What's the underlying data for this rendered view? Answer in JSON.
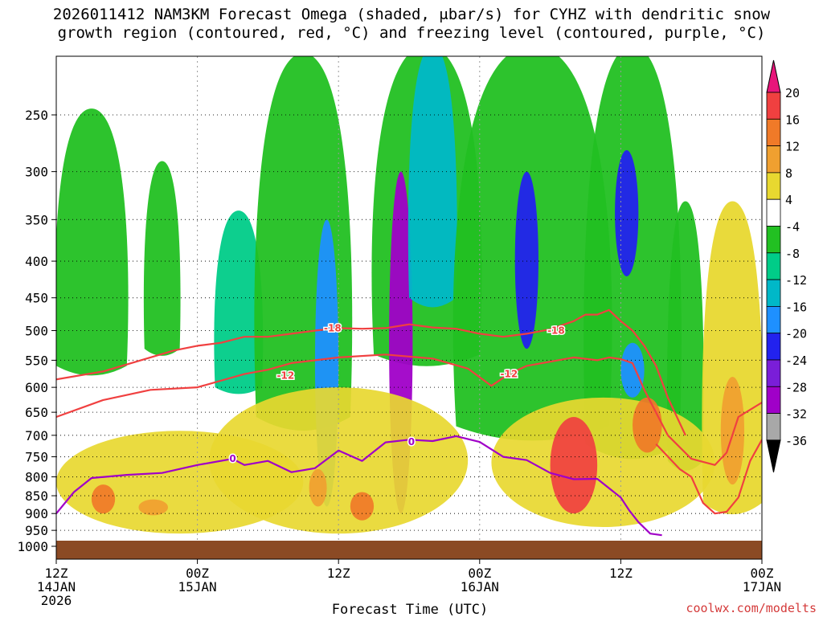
{
  "title": {
    "line1": "2026011412 NAM3KM Forecast Omega (shaded, μbar/s) for CYHZ with dendritic snow",
    "line2": "growth region (contoured, red, °C) and freezing level (contoured, purple, °C)"
  },
  "footer": {
    "xaxis_title": "Forecast Time (UTC)",
    "credit": "coolwx.com/modelts"
  },
  "chart_data": {
    "type": "heatmap",
    "xlabel": "Forecast Time (UTC)",
    "ylabel": "",
    "xlim": [
      0,
      60
    ],
    "ylim_hpa": [
      1000,
      200
    ],
    "y_scale": "log-pressure",
    "grid": true,
    "legend": "colorbar-right",
    "x_ticks": [
      {
        "hour": 0,
        "label": "12Z",
        "sub": [
          "14JAN",
          "2026"
        ]
      },
      {
        "hour": 12,
        "label": "00Z",
        "sub": [
          "15JAN"
        ]
      },
      {
        "hour": 24,
        "label": "12Z",
        "sub": []
      },
      {
        "hour": 36,
        "label": "00Z",
        "sub": [
          "16JAN"
        ]
      },
      {
        "hour": 48,
        "label": "12Z",
        "sub": []
      },
      {
        "hour": 60,
        "label": "00Z",
        "sub": [
          "17JAN"
        ]
      }
    ],
    "y_ticks": [
      250,
      300,
      350,
      400,
      450,
      500,
      550,
      600,
      650,
      700,
      750,
      800,
      850,
      900,
      950,
      1000
    ],
    "colorbar": {
      "levels": [
        20,
        16,
        12,
        8,
        4,
        -4,
        -8,
        -12,
        -16,
        -20,
        -24,
        -28,
        -32,
        -36
      ],
      "bands": [
        {
          "range": "above 20",
          "color": "#e8157a"
        },
        {
          "range": "16 to 20",
          "color": "#f04040"
        },
        {
          "range": "12 to 16",
          "color": "#f07a28"
        },
        {
          "range": "8 to 12",
          "color": "#f0a030"
        },
        {
          "range": "4 to 8",
          "color": "#e8d830"
        },
        {
          "range": "-4 to 4",
          "color": "#ffffff"
        },
        {
          "range": "-8 to -4",
          "color": "#22c022"
        },
        {
          "range": "-12 to -8",
          "color": "#00cc88"
        },
        {
          "range": "-16 to -12",
          "color": "#00b8c8"
        },
        {
          "range": "-20 to -16",
          "color": "#1e90ff"
        },
        {
          "range": "-24 to -20",
          "color": "#2222ee"
        },
        {
          "range": "-28 to -24",
          "color": "#7a1ed8"
        },
        {
          "range": "-32 to -28",
          "color": "#a000c8"
        },
        {
          "range": "-36 to -32",
          "color": "#a8a8a8"
        },
        {
          "range": "below -36",
          "color": "#000000"
        }
      ]
    },
    "terrain": {
      "color": "#8b4a24",
      "top_hpa": 1000
    },
    "omega_features": [
      {
        "value": -6,
        "hours": [
          0.0,
          6.0
        ],
        "hpa": [
          245,
          560
        ],
        "shape": "plume"
      },
      {
        "value": -6,
        "hours": [
          7.5,
          10.5
        ],
        "hpa": [
          290,
          530
        ],
        "shape": "plume"
      },
      {
        "value": -10,
        "hours": [
          13.5,
          17.5
        ],
        "hpa": [
          340,
          600
        ],
        "shape": "plume"
      },
      {
        "value": -6,
        "hours": [
          17.0,
          25.0
        ],
        "hpa": [
          205,
          660
        ],
        "shape": "plume"
      },
      {
        "value": -18,
        "hours": [
          22.0,
          24.0
        ],
        "hpa": [
          350,
          880
        ],
        "shape": "column"
      },
      {
        "value": -6,
        "hours": [
          27.0,
          36.0
        ],
        "hpa": [
          200,
          540
        ],
        "shape": "plume"
      },
      {
        "value": -30,
        "hours": [
          28.3,
          30.3
        ],
        "hpa": [
          300,
          900
        ],
        "shape": "column"
      },
      {
        "value": -14,
        "hours": [
          30.0,
          34.0
        ],
        "hpa": [
          200,
          450
        ],
        "shape": "plume"
      },
      {
        "value": -6,
        "hours": [
          34.0,
          47.0
        ],
        "hpa": [
          200,
          680
        ],
        "shape": "plume"
      },
      {
        "value": -22,
        "hours": [
          39.0,
          41.0
        ],
        "hpa": [
          300,
          530
        ],
        "shape": "column"
      },
      {
        "value": -6,
        "hours": [
          45.0,
          53.0
        ],
        "hpa": [
          200,
          720
        ],
        "shape": "plume"
      },
      {
        "value": -20,
        "hours": [
          47.5,
          49.5
        ],
        "hpa": [
          280,
          420
        ],
        "shape": "column"
      },
      {
        "value": -18,
        "hours": [
          48.0,
          50.0
        ],
        "hpa": [
          520,
          620
        ],
        "shape": "column"
      },
      {
        "value": -6,
        "hours": [
          52.0,
          55.0
        ],
        "hpa": [
          330,
          760
        ],
        "shape": "plume"
      },
      {
        "value": 6,
        "hours": [
          0.0,
          21.0
        ],
        "hpa": [
          690,
          960
        ],
        "shape": "blob"
      },
      {
        "value": 13,
        "hours": [
          3.0,
          5.0
        ],
        "hpa": [
          820,
          900
        ],
        "shape": "blob"
      },
      {
        "value": 10,
        "hours": [
          7.0,
          9.5
        ],
        "hpa": [
          860,
          905
        ],
        "shape": "blob"
      },
      {
        "value": 6,
        "hours": [
          13.0,
          35.0
        ],
        "hpa": [
          600,
          960
        ],
        "shape": "blob"
      },
      {
        "value": 14,
        "hours": [
          25.0,
          27.0
        ],
        "hpa": [
          840,
          920
        ],
        "shape": "blob"
      },
      {
        "value": 10,
        "hours": [
          21.5,
          23.0
        ],
        "hpa": [
          780,
          880
        ],
        "shape": "blob"
      },
      {
        "value": 6,
        "hours": [
          37.0,
          56.0
        ],
        "hpa": [
          620,
          940
        ],
        "shape": "blob"
      },
      {
        "value": 18,
        "hours": [
          42.0,
          46.0
        ],
        "hpa": [
          660,
          900
        ],
        "shape": "blob"
      },
      {
        "value": 14,
        "hours": [
          49.0,
          51.5
        ],
        "hpa": [
          620,
          740
        ],
        "shape": "blob"
      },
      {
        "value": 6,
        "hours": [
          55.0,
          60.0
        ],
        "hpa": [
          330,
          870
        ],
        "shape": "plume"
      },
      {
        "value": 10,
        "hours": [
          56.5,
          58.5
        ],
        "hpa": [
          580,
          820
        ],
        "shape": "blob"
      }
    ],
    "series": [
      {
        "name": "-18",
        "color": "#f04040",
        "x": [
          0,
          4,
          8,
          10,
          12,
          14,
          16,
          18,
          20,
          22,
          24,
          26,
          28,
          30,
          32,
          34,
          36,
          38,
          40,
          42,
          44,
          45,
          46,
          47,
          48,
          49,
          50,
          51,
          52,
          53.5
        ],
        "y": [
          585,
          570,
          545,
          533,
          525,
          520,
          510,
          510,
          505,
          500,
          496,
          497,
          496,
          490,
          495,
          497,
          505,
          510,
          505,
          498,
          485,
          475,
          475,
          468,
          485,
          500,
          525,
          560,
          620,
          700
        ]
      },
      {
        "name": "-12",
        "color": "#f04040",
        "x": [
          0,
          4,
          8,
          12,
          16,
          18,
          20,
          24,
          28,
          32,
          35,
          37,
          38.5,
          40,
          44,
          46,
          47,
          48,
          49,
          50,
          52,
          54,
          56,
          57,
          58,
          60
        ],
        "y": [
          660,
          625,
          605,
          600,
          575,
          567,
          555,
          545,
          540,
          547,
          565,
          597,
          575,
          560,
          545,
          550,
          545,
          548,
          555,
          605,
          700,
          755,
          770,
          740,
          660,
          630
        ]
      },
      {
        "name": "-12 (lower)",
        "color": "#f04040",
        "x": [
          51,
          53,
          54,
          55,
          56,
          57,
          58,
          59,
          60
        ],
        "y": [
          720,
          780,
          800,
          870,
          900,
          895,
          855,
          760,
          710
        ]
      },
      {
        "name": "0",
        "color": "#a000c8",
        "x": [
          0,
          1.5,
          3,
          6,
          9,
          12,
          15,
          16,
          18,
          20,
          22,
          24,
          26,
          28,
          30,
          32,
          34,
          36,
          38,
          40,
          42,
          44,
          46,
          48,
          48.7,
          49.5,
          50.5,
          51.5
        ],
        "y": [
          900,
          840,
          803,
          795,
          790,
          770,
          755,
          770,
          760,
          788,
          778,
          735,
          760,
          716,
          710,
          713,
          702,
          715,
          750,
          758,
          790,
          806,
          805,
          855,
          890,
          925,
          960,
          965
        ]
      }
    ],
    "contour_labels": [
      {
        "text": "-18",
        "hour": 23.5,
        "hpa": 496,
        "color": "#f04040"
      },
      {
        "text": "-18",
        "hour": 42.5,
        "hpa": 500,
        "color": "#f04040"
      },
      {
        "text": "-12",
        "hour": 19.5,
        "hpa": 578,
        "color": "#f04040"
      },
      {
        "text": "-12",
        "hour": 38.5,
        "hpa": 575,
        "color": "#f04040"
      },
      {
        "text": "0",
        "hour": 15.0,
        "hpa": 755,
        "color": "#a000c8"
      },
      {
        "text": "0",
        "hour": 30.2,
        "hpa": 715,
        "color": "#a000c8"
      }
    ]
  }
}
